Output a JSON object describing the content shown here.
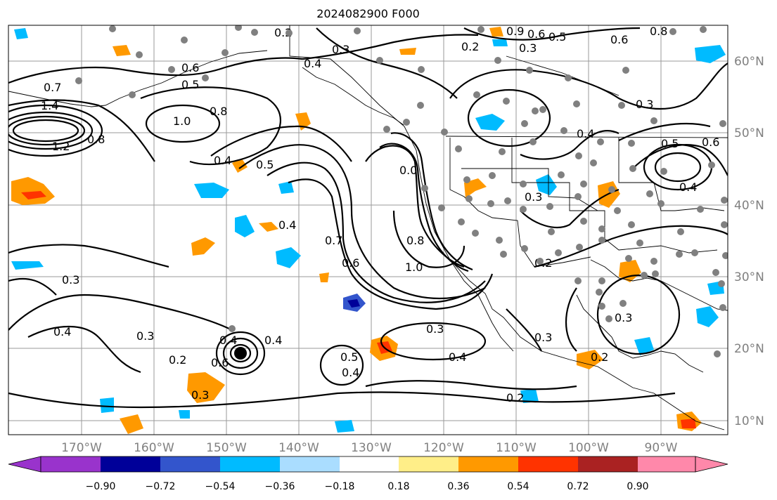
{
  "title": "2024082900 F000",
  "map": {
    "lon_ticks": [
      "170°W",
      "160°W",
      "150°W",
      "140°W",
      "130°W",
      "120°W",
      "110°W",
      "100°W",
      "90°W"
    ],
    "lat_ticks": [
      "60°N",
      "50°N",
      "40°N",
      "30°N",
      "20°N",
      "10°N"
    ],
    "contour_labels": [
      "0.7",
      "1.4",
      "1.2",
      "0.8",
      "1.0",
      "0.8",
      "0.4",
      "0.5",
      "0.4",
      "0.2",
      "0.3",
      "0.6",
      "0.5",
      "0.4",
      "0.7",
      "0.6",
      "0.8",
      "1.0",
      "0.0",
      "0.3",
      "0.4",
      "0.3",
      "0.2",
      "0.3",
      "0.4",
      "0.6",
      "0.4",
      "0.3",
      "0.2",
      "0.3",
      "0.4",
      "0.2",
      "0.3",
      "0.4",
      "0.5",
      "0.2",
      "0.3",
      "0.5",
      "0.4",
      "0.6",
      "0.9",
      "0.6",
      "0.5",
      "0.3",
      "0.2",
      "0.8",
      "0.6",
      "0.4",
      "0.3"
    ],
    "colors": {
      "land_outline": "#000000",
      "grid": "#9a9a9a",
      "station_dot": "#808080"
    }
  },
  "colorbar": {
    "tick_labels": [
      "−0.90",
      "−0.72",
      "−0.54",
      "−0.36",
      "−0.18",
      "0.18",
      "0.36",
      "0.54",
      "0.72",
      "0.90"
    ],
    "colors": [
      "#9933cc",
      "#000099",
      "#3355cc",
      "#00bbff",
      "#aaddff",
      "#ffffff",
      "#ffee88",
      "#ff9900",
      "#ff3300",
      "#aa2222",
      "#ff88aa"
    ]
  }
}
